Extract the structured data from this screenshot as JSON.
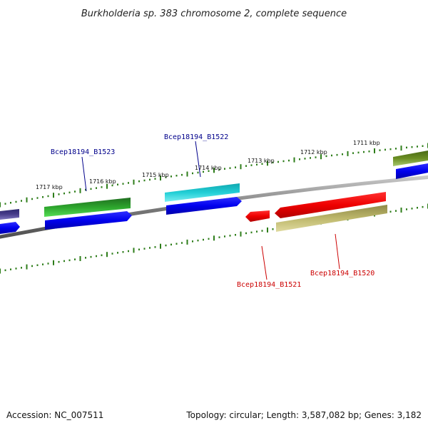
{
  "title": "Burkholderia sp. 383 chromosome 2, complete sequence",
  "footer": {
    "accession": "Accession: NC_007511",
    "summary": "Topology: circular; Length: 3,587,082 bp; Genes: 3,182"
  },
  "ticks": [
    "1711 kbp",
    "1712 kbp",
    "1713 kbp",
    "1714 kbp",
    "1715 kbp",
    "1716 kbp",
    "1717 kbp"
  ],
  "genes": [
    {
      "label": "Bcep18194_B1523",
      "color": "#00008b"
    },
    {
      "label": "Bcep18194_B1522",
      "color": "#00008b"
    },
    {
      "label": "Bcep18194_B1521",
      "color": "#cc0000"
    },
    {
      "label": "Bcep18194_B1520",
      "color": "#cc0000"
    }
  ],
  "colors": {
    "backbone": "#808080",
    "tick": "#2e7d1a",
    "gene_green": "#2a9a2a",
    "gene_green_light": "#33cc33",
    "gene_blue": "#0000ee",
    "gene_cyan": "#17c4cc",
    "gene_red": "#ee0000",
    "gene_khaki": "#bdb76b",
    "gene_olive": "#6b8e23",
    "gene_purple": "#483d8b"
  }
}
